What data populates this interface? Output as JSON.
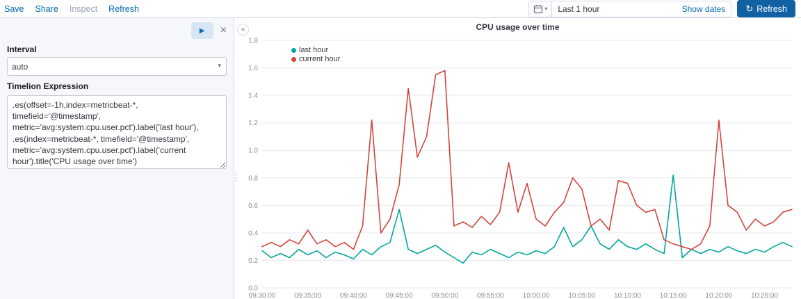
{
  "topbar": {
    "save": "Save",
    "share": "Share",
    "inspect": "Inspect",
    "refresh": "Refresh",
    "time_range": "Last 1 hour",
    "show_dates": "Show dates",
    "refresh_button": "Refresh"
  },
  "sidebar": {
    "interval_label": "Interval",
    "interval_value": "auto",
    "expression_label": "Timelion Expression",
    "expression": ".es(offset=-1h,index=metricbeat-*, timefield='@timestamp', metric='avg:system.cpu.user.pct').label('last hour'),\n.es(index=metricbeat-*, timefield='@timestamp', metric='avg:system.cpu.user.pct').label('current hour').title('CPU usage over time')"
  },
  "colors": {
    "accent": "#006BB4",
    "refresh_button_bg": "#1262a3",
    "series_last_hour": "#00a69b",
    "series_current_hour": "#d2443c"
  },
  "chart_data": {
    "type": "line",
    "title": "CPU usage over time",
    "ylim": [
      0,
      1.8
    ],
    "ytick_step": 0.2,
    "grid": "horizontal",
    "legend_position": "top-left",
    "categories": [
      "09:30:00",
      "09:31:00",
      "09:32:00",
      "09:33:00",
      "09:34:00",
      "09:35:00",
      "09:36:00",
      "09:37:00",
      "09:38:00",
      "09:39:00",
      "09:40:00",
      "09:41:00",
      "09:42:00",
      "09:43:00",
      "09:44:00",
      "09:45:00",
      "09:46:00",
      "09:47:00",
      "09:48:00",
      "09:49:00",
      "09:50:00",
      "09:51:00",
      "09:52:00",
      "09:53:00",
      "09:54:00",
      "09:55:00",
      "09:56:00",
      "09:57:00",
      "09:58:00",
      "09:59:00",
      "10:00:00",
      "10:01:00",
      "10:02:00",
      "10:03:00",
      "10:04:00",
      "10:05:00",
      "10:06:00",
      "10:07:00",
      "10:08:00",
      "10:09:00",
      "10:10:00",
      "10:11:00",
      "10:12:00",
      "10:13:00",
      "10:14:00",
      "10:15:00",
      "10:16:00",
      "10:17:00",
      "10:18:00",
      "10:19:00",
      "10:20:00",
      "10:21:00",
      "10:22:00",
      "10:23:00",
      "10:24:00",
      "10:25:00",
      "10:26:00",
      "10:27:00",
      "10:28:00"
    ],
    "xticks": [
      "09:30:00",
      "09:35:00",
      "09:40:00",
      "09:45:00",
      "09:50:00",
      "09:55:00",
      "10:00:00",
      "10:05:00",
      "10:10:00",
      "10:15:00",
      "10:20:00",
      "10:25:00"
    ],
    "series": [
      {
        "name": "last hour",
        "color": "#00a69b",
        "values": [
          0.27,
          0.22,
          0.25,
          0.22,
          0.28,
          0.24,
          0.27,
          0.22,
          0.26,
          0.24,
          0.21,
          0.28,
          0.24,
          0.3,
          0.33,
          0.57,
          0.28,
          0.25,
          0.28,
          0.31,
          0.26,
          0.22,
          0.18,
          0.26,
          0.24,
          0.28,
          0.25,
          0.22,
          0.26,
          0.24,
          0.27,
          0.25,
          0.3,
          0.44,
          0.3,
          0.35,
          0.45,
          0.32,
          0.28,
          0.35,
          0.3,
          0.28,
          0.32,
          0.28,
          0.25,
          0.82,
          0.22,
          0.28,
          0.25,
          0.28,
          0.26,
          0.3,
          0.27,
          0.25,
          0.28,
          0.26,
          0.3,
          0.33,
          0.3
        ]
      },
      {
        "name": "current hour",
        "color": "#d2443c",
        "values": [
          0.3,
          0.33,
          0.3,
          0.35,
          0.32,
          0.42,
          0.32,
          0.35,
          0.3,
          0.33,
          0.28,
          0.45,
          1.22,
          0.4,
          0.5,
          0.75,
          1.45,
          0.95,
          1.1,
          1.55,
          1.58,
          0.45,
          0.48,
          0.44,
          0.52,
          0.46,
          0.55,
          0.91,
          0.55,
          0.76,
          0.5,
          0.45,
          0.55,
          0.62,
          0.8,
          0.72,
          0.45,
          0.5,
          0.42,
          0.78,
          0.76,
          0.6,
          0.55,
          0.57,
          0.35,
          0.32,
          0.3,
          0.28,
          0.32,
          0.45,
          1.22,
          0.6,
          0.55,
          0.42,
          0.5,
          0.45,
          0.48,
          0.55,
          0.57
        ]
      }
    ]
  }
}
